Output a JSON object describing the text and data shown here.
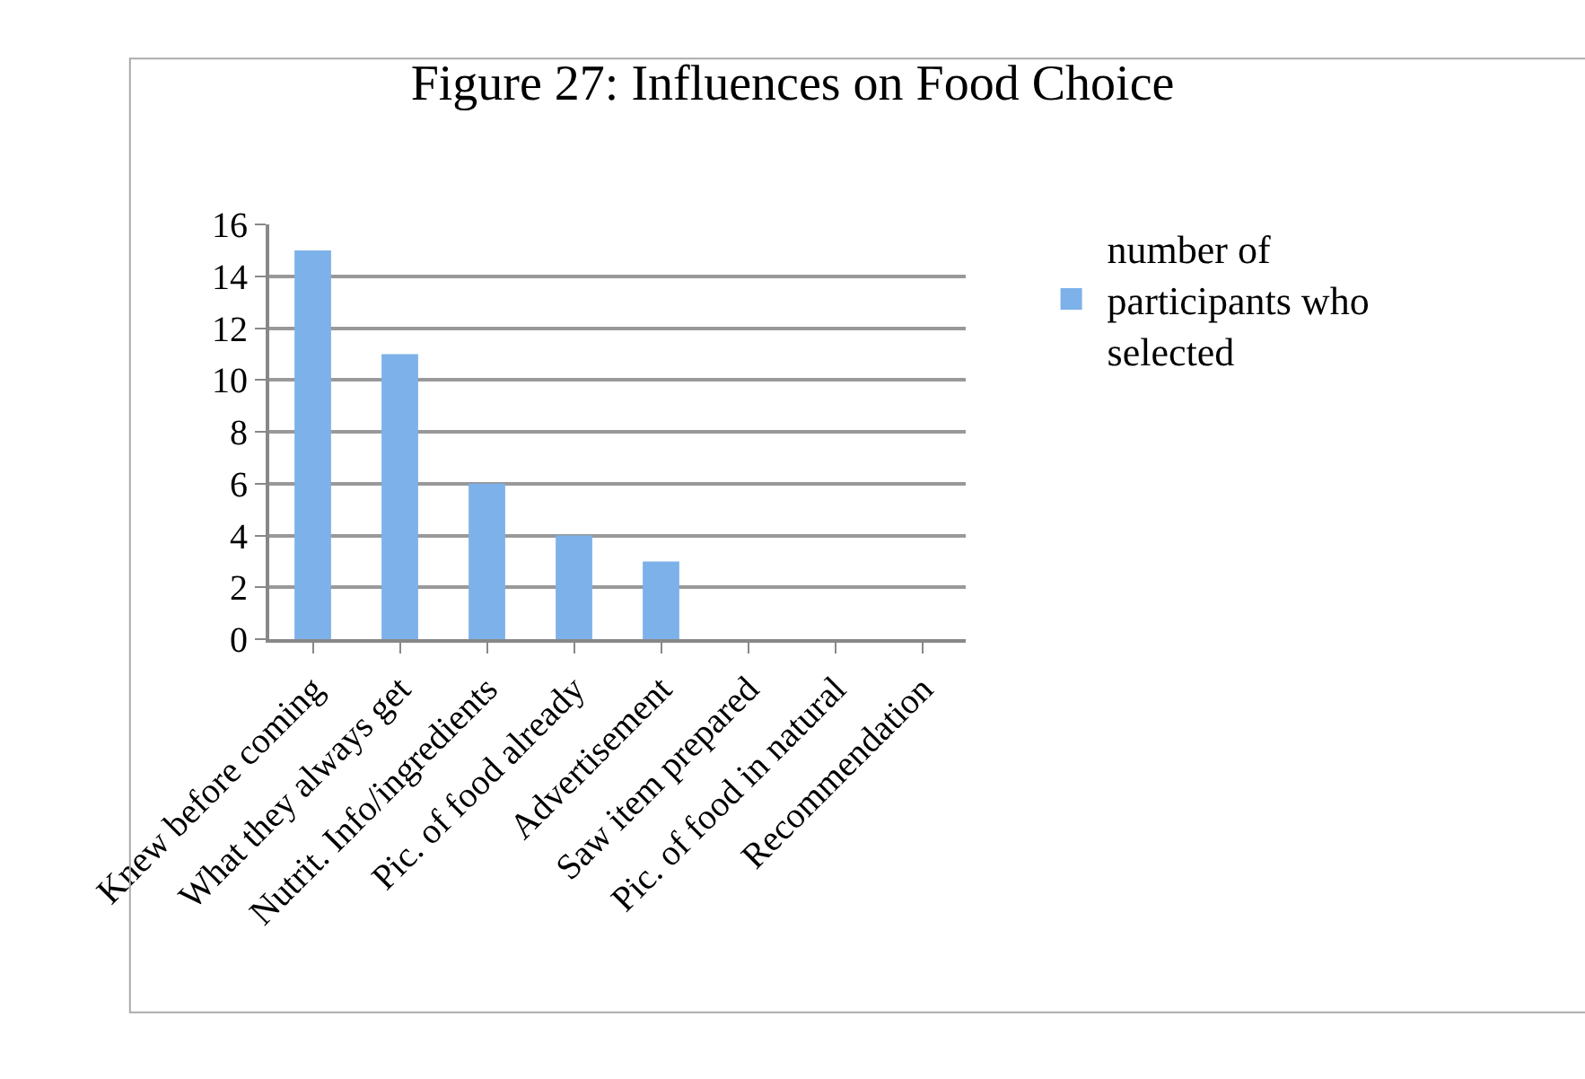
{
  "chart_data": {
    "type": "bar",
    "title": "Figure 27: Influences on Food Choice",
    "categories": [
      "Knew before coming",
      "What they always get",
      "Nutrit. Info/ingredients",
      "Pic. of food already",
      "Advertisement",
      "Saw item prepared",
      "Pic. of food in natural",
      "Recommendation"
    ],
    "series": [
      {
        "name": "number of participants who selected",
        "color": "#7db1ea",
        "values": [
          15,
          11,
          6,
          4,
          3,
          0,
          0,
          0
        ]
      }
    ],
    "ylim": [
      0,
      16
    ],
    "yticks": [
      0,
      2,
      4,
      6,
      8,
      10,
      12,
      14,
      16
    ],
    "grid": "y",
    "legend": "right"
  }
}
